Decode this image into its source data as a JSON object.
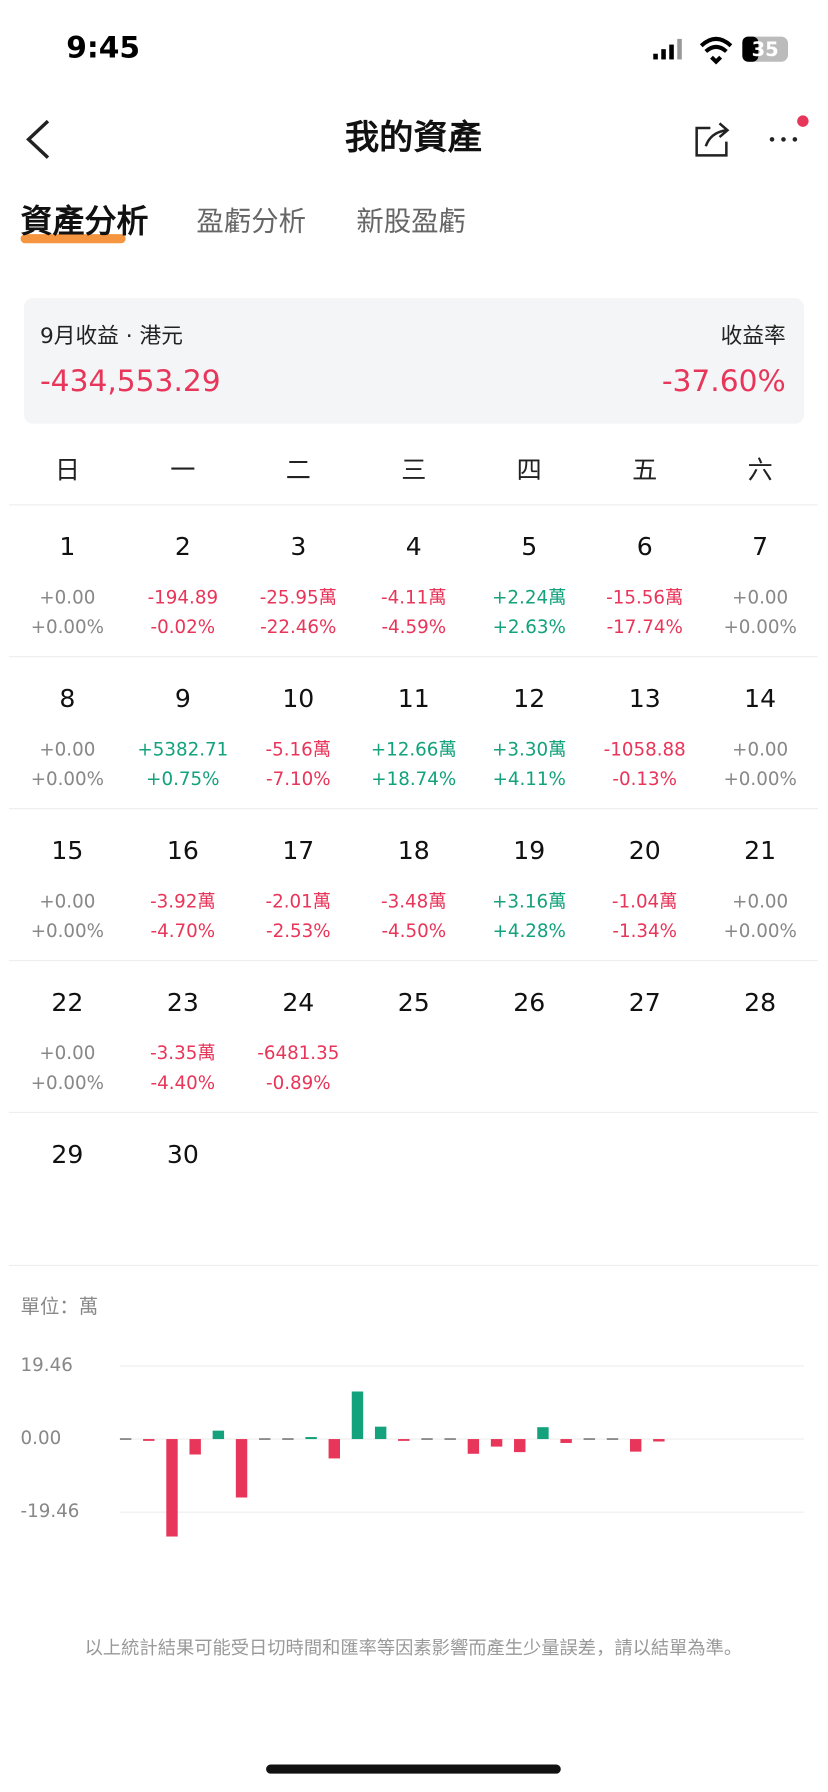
{
  "status_bar": {
    "time": "9:45",
    "battery": "35"
  },
  "header": {
    "title": "我的資產"
  },
  "tabs": [
    "資產分析",
    "盈虧分析",
    "新股盈虧"
  ],
  "summary": {
    "label": "9月收益 · 港元",
    "value": "-434,553.29",
    "rate_label": "收益率",
    "rate": "-37.60%"
  },
  "calendar": {
    "weekdays": [
      "日",
      "一",
      "二",
      "三",
      "四",
      "五",
      "六"
    ],
    "days": [
      {
        "day": 1,
        "amount": "+0.00",
        "pct": "+0.00%"
      },
      {
        "day": 2,
        "amount": "-194.89",
        "pct": "-0.02%"
      },
      {
        "day": 3,
        "amount": "-25.95萬",
        "pct": "-22.46%"
      },
      {
        "day": 4,
        "amount": "-4.11萬",
        "pct": "-4.59%"
      },
      {
        "day": 5,
        "amount": "+2.24萬",
        "pct": "+2.63%"
      },
      {
        "day": 6,
        "amount": "-15.56萬",
        "pct": "-17.74%"
      },
      {
        "day": 7,
        "amount": "+0.00",
        "pct": "+0.00%"
      },
      {
        "day": 8,
        "amount": "+0.00",
        "pct": "+0.00%"
      },
      {
        "day": 9,
        "amount": "+5382.71",
        "pct": "+0.75%"
      },
      {
        "day": 10,
        "amount": "-5.16萬",
        "pct": "-7.10%"
      },
      {
        "day": 11,
        "amount": "+12.66萬",
        "pct": "+18.74%"
      },
      {
        "day": 12,
        "amount": "+3.30萬",
        "pct": "+4.11%"
      },
      {
        "day": 13,
        "amount": "-1058.88",
        "pct": "-0.13%"
      },
      {
        "day": 14,
        "amount": "+0.00",
        "pct": "+0.00%"
      },
      {
        "day": 15,
        "amount": "+0.00",
        "pct": "+0.00%"
      },
      {
        "day": 16,
        "amount": "-3.92萬",
        "pct": "-4.70%"
      },
      {
        "day": 17,
        "amount": "-2.01萬",
        "pct": "-2.53%"
      },
      {
        "day": 18,
        "amount": "-3.48萬",
        "pct": "-4.50%"
      },
      {
        "day": 19,
        "amount": "+3.16萬",
        "pct": "+4.28%"
      },
      {
        "day": 20,
        "amount": "-1.04萬",
        "pct": "-1.34%"
      },
      {
        "day": 21,
        "amount": "+0.00",
        "pct": "+0.00%"
      },
      {
        "day": 22,
        "amount": "+0.00",
        "pct": "+0.00%"
      },
      {
        "day": 23,
        "amount": "-3.35萬",
        "pct": "-4.40%"
      },
      {
        "day": 24,
        "amount": "-6481.35",
        "pct": "-0.89%"
      },
      {
        "day": 25
      },
      {
        "day": 26
      },
      {
        "day": 27
      },
      {
        "day": 28
      },
      {
        "day": 29
      },
      {
        "day": 30
      }
    ]
  },
  "chart_data": {
    "type": "bar",
    "unit_label": "單位：萬",
    "values": [
      0,
      -0.0195,
      -25.95,
      -4.11,
      2.24,
      -15.56,
      0,
      0,
      0.538,
      -5.16,
      12.66,
      3.3,
      -0.106,
      0,
      0,
      -3.92,
      -2.01,
      -3.48,
      3.16,
      -1.04,
      0,
      0,
      -3.35,
      -0.648
    ],
    "ylim": [
      -27,
      27
    ],
    "yticks": [
      19.46,
      {
        "value": 0,
        "label": "0.00"
      },
      -19.46
    ],
    "grid": true,
    "colors": {
      "positive": "#13a27c",
      "negative": "#e8365a",
      "zero": "#888888"
    }
  },
  "footer": "以上統計結果可能受日切時間和匯率等因素影響而產生少量誤差，請以結單為準。"
}
